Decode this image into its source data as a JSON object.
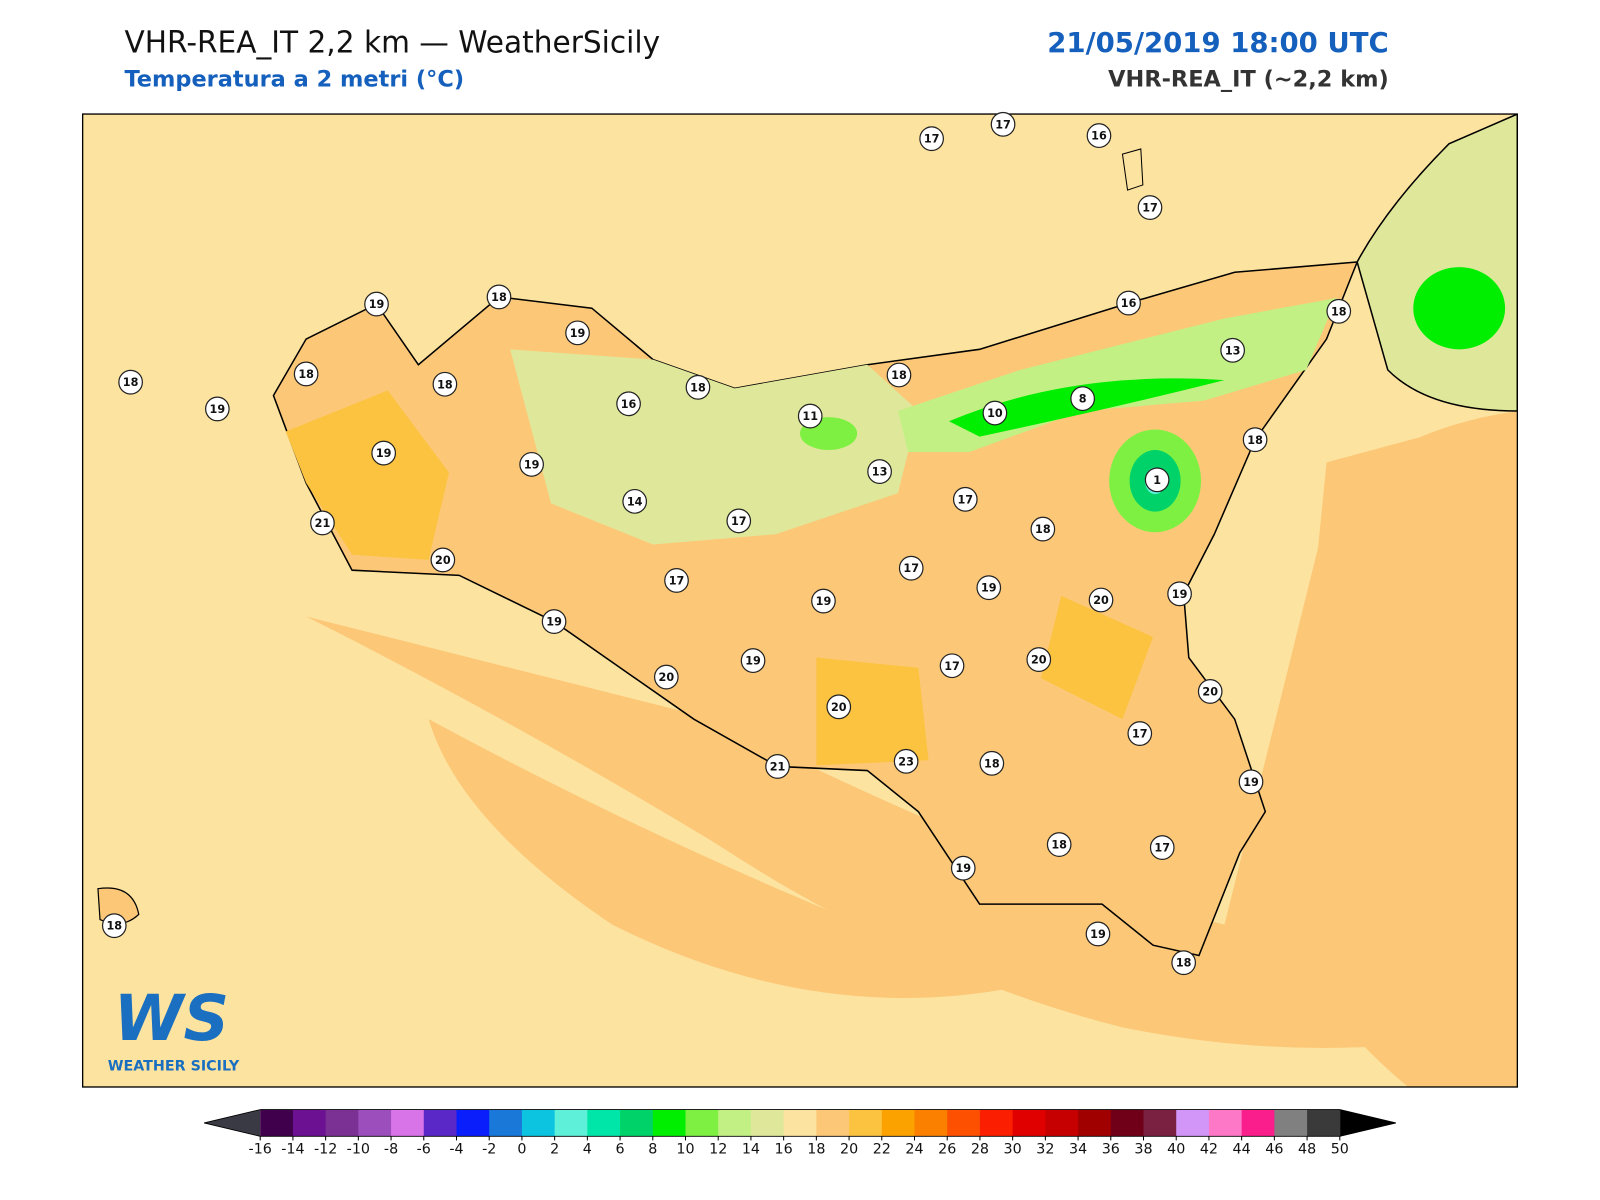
{
  "header": {
    "title": "VHR-REA_IT 2,2 km — WeatherSicily",
    "subtitle": "Temperatura a 2 metri (°C)",
    "datetime": "21/05/2019 18:00 UTC",
    "model": "VHR-REA_IT (~2,2 km)"
  },
  "map": {
    "stations": [
      17,
      17,
      16,
      17,
      19,
      18,
      19,
      16,
      18,
      18,
      18,
      18,
      19,
      16,
      18,
      18,
      13,
      8,
      10,
      11,
      19,
      19,
      13,
      18,
      1,
      14,
      17,
      17,
      21,
      18,
      20,
      17,
      17,
      19,
      19,
      20,
      19,
      19,
      19,
      17,
      20,
      20,
      20,
      20,
      17,
      23,
      21,
      18,
      19,
      18,
      17,
      19,
      19,
      18,
      18
    ]
  },
  "logo": {
    "mark": "WS",
    "name": "WEATHER SICILY"
  },
  "colorbar": {
    "ticks": [
      -16,
      -14,
      -12,
      -10,
      -8,
      -6,
      -4,
      -2,
      0,
      2,
      4,
      6,
      8,
      10,
      12,
      14,
      16,
      18,
      20,
      22,
      24,
      26,
      28,
      30,
      32,
      34,
      36,
      38,
      40,
      42,
      44,
      46,
      48,
      50
    ],
    "colors": [
      "#40004b",
      "#6b1191",
      "#7b3094",
      "#9c4fbc",
      "#d873e8",
      "#5a28c6",
      "#0a1efb",
      "#1a78d9",
      "#0dc4e0",
      "#5ef0d8",
      "#00e6a8",
      "#00d26a",
      "#00ee00",
      "#7ef042",
      "#c2f084",
      "#dfe89a",
      "#fde3a0",
      "#fcc878",
      "#fcc340",
      "#fca200",
      "#fc8000",
      "#fd5000",
      "#fc1e00",
      "#e00000",
      "#c60000",
      "#a00000",
      "#700018",
      "#7a2040",
      "#d296f8",
      "#fe78c8",
      "#fa1e8c",
      "#808080",
      "#3a3a3a"
    ],
    "under_color": "#3a3a44",
    "over_color": "#000000"
  }
}
